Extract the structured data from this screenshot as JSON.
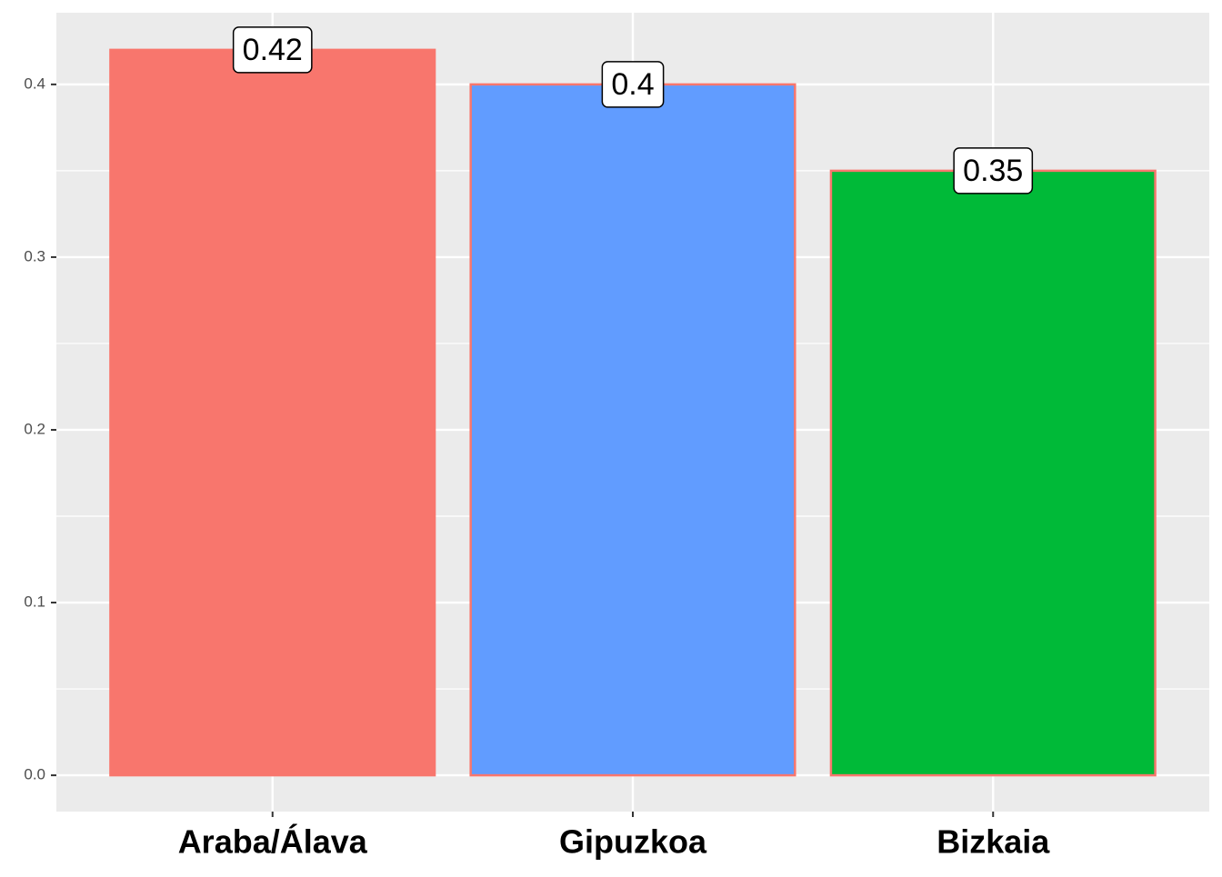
{
  "chart_data": {
    "type": "bar",
    "categories": [
      "Araba/Álava",
      "Gipuzkoa",
      "Bizkaia"
    ],
    "values": [
      0.42,
      0.4,
      0.35
    ],
    "colors": [
      "#F8766D",
      "#619CFF",
      "#00BA38"
    ],
    "outline": "#F8766D",
    "ylim": [
      -0.021,
      0.4415
    ],
    "yticks": [
      {
        "value": 0,
        "label": "0.0"
      },
      0.1,
      0.2,
      0.3,
      0.4
    ],
    "y_minor_ticks": [
      0.05,
      0.15,
      0.25,
      0.35
    ],
    "grid": true
  }
}
